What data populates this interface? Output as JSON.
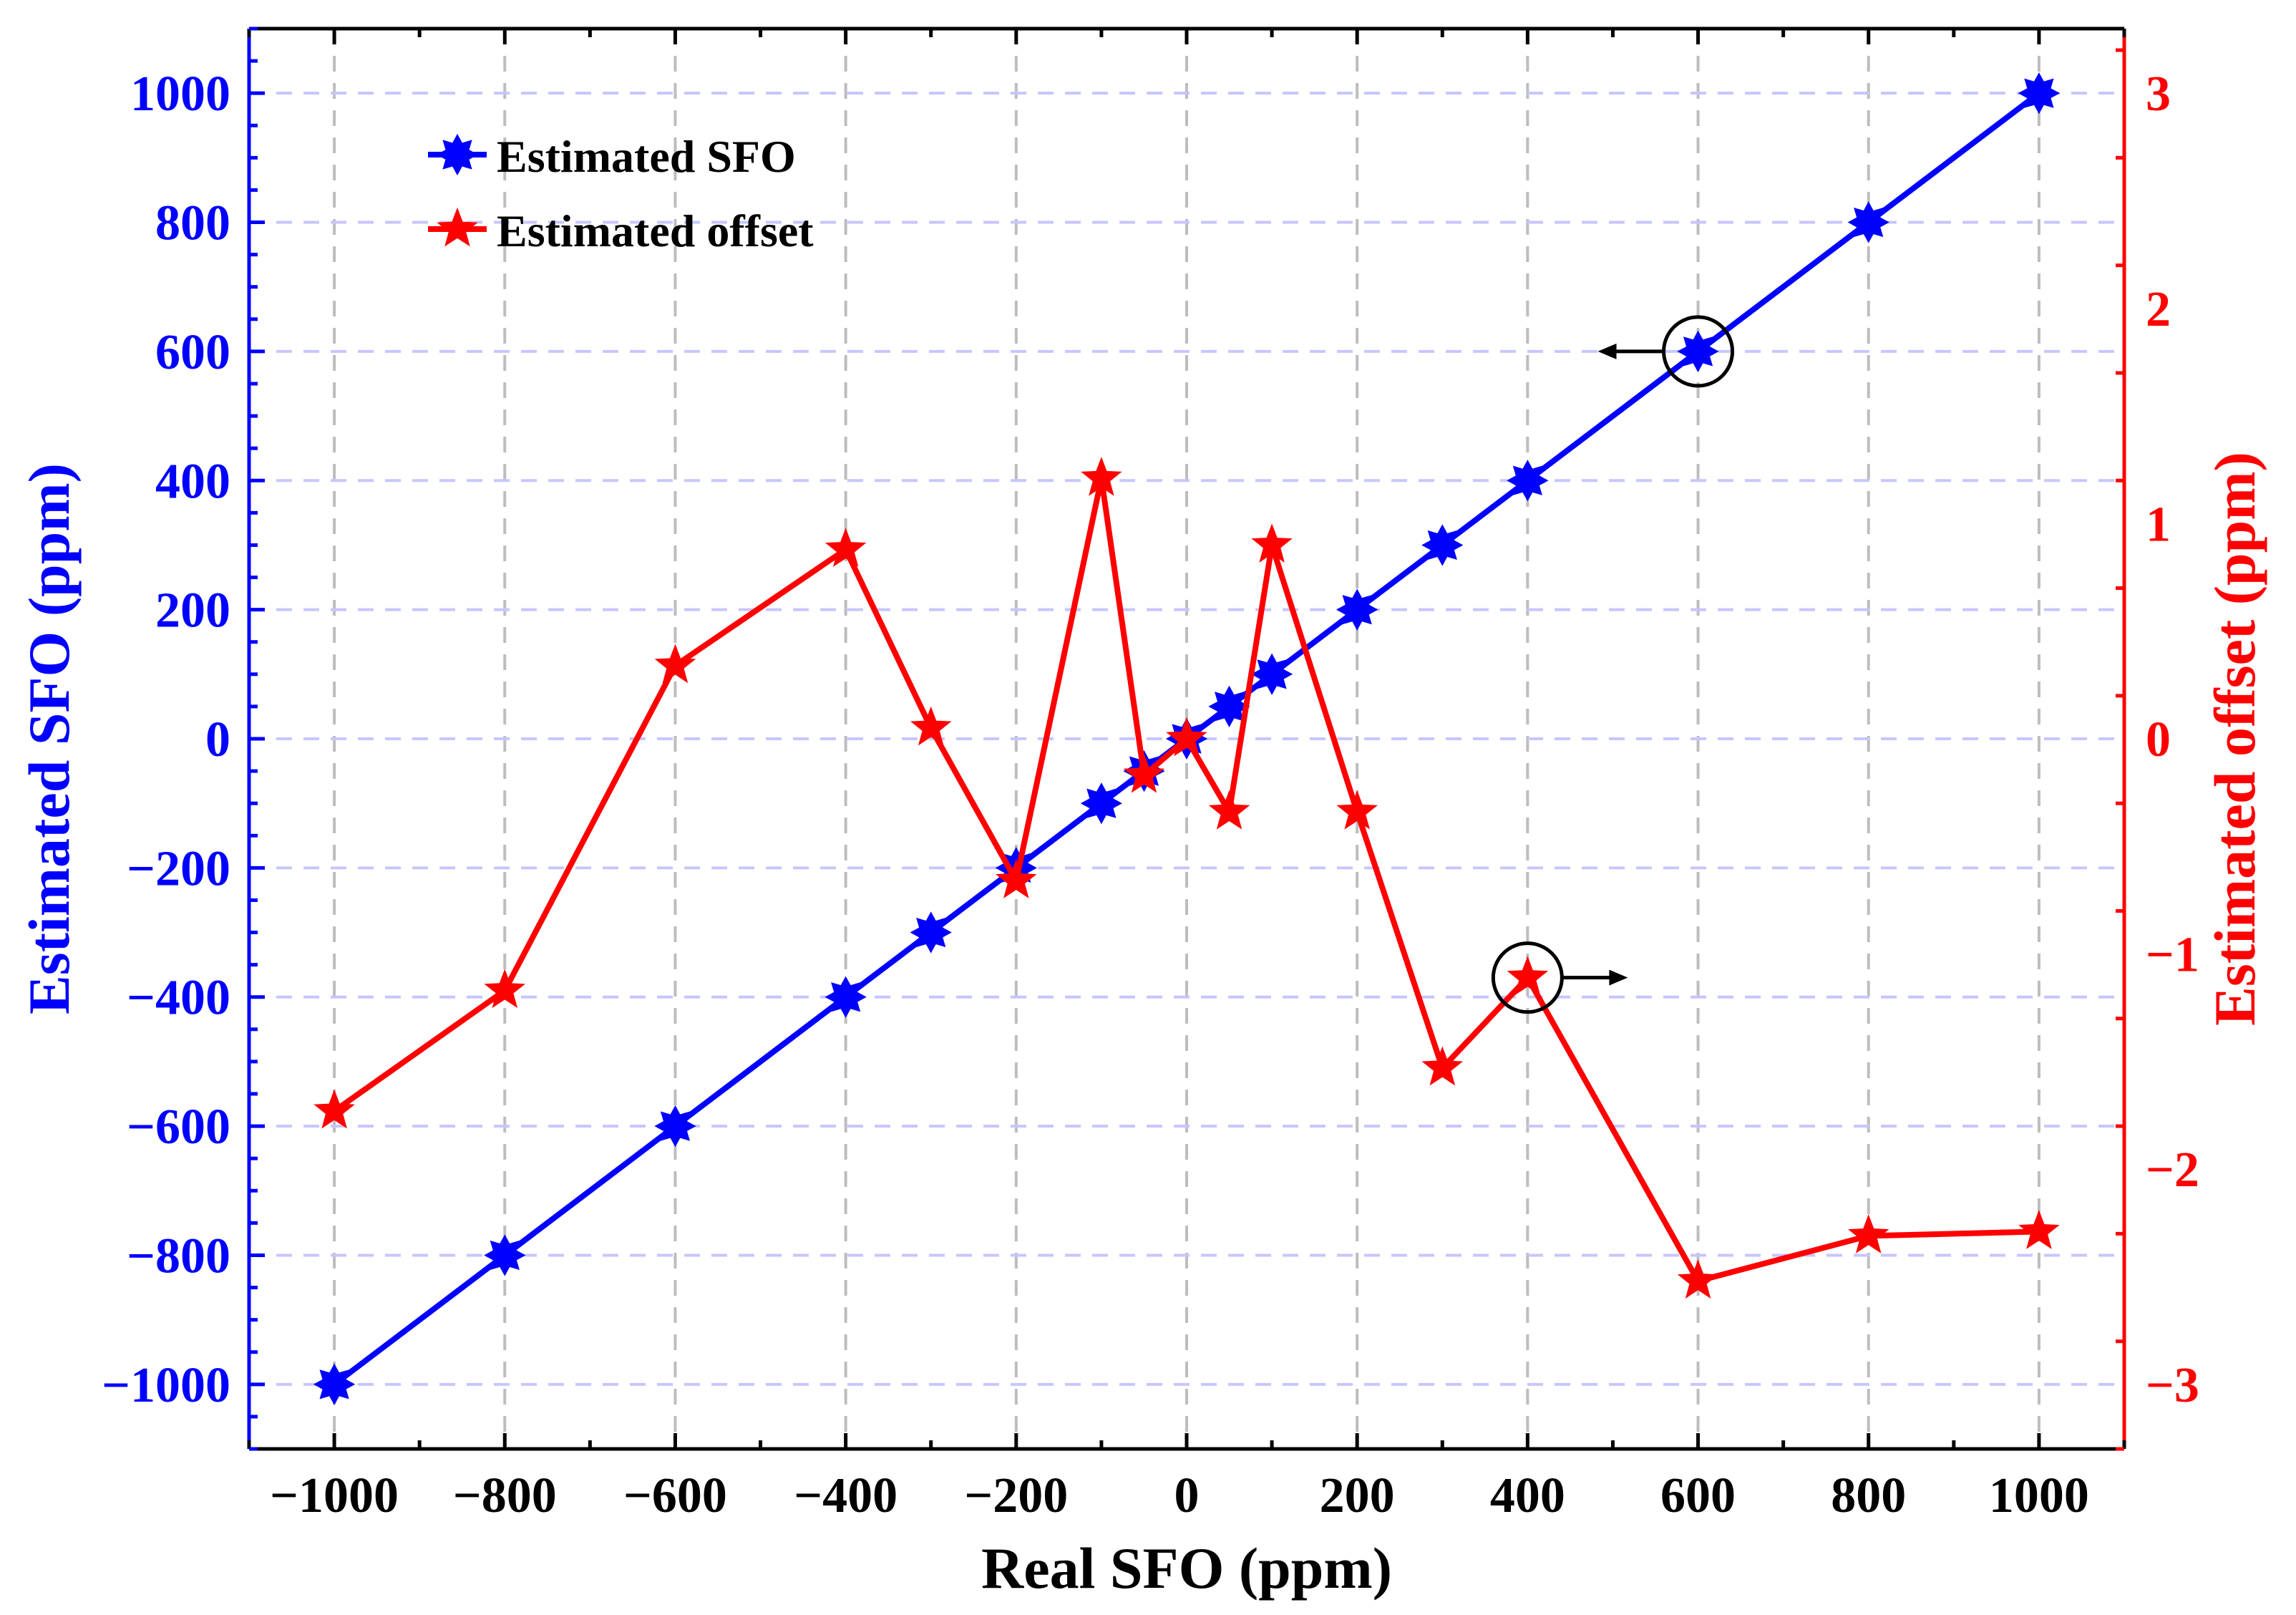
{
  "chart_data": {
    "type": "line",
    "xlabel": "Real SFO (ppm)",
    "ylabel_left": "Estimated SFO (ppm)",
    "ylabel_right": "Estimated offset (ppm)",
    "xlim": [
      -1100,
      1100
    ],
    "ylim_left": [
      -1100,
      1100
    ],
    "ylim_right": [
      -3.3,
      3.3
    ],
    "x_ticks": [
      -1000,
      -800,
      -600,
      -400,
      -200,
      0,
      200,
      400,
      600,
      800,
      1000
    ],
    "x_tick_labels": [
      "−1000",
      "−800",
      "−600",
      "−400",
      "−200",
      "0",
      "200",
      "400",
      "600",
      "800",
      "1000"
    ],
    "y_left_ticks": [
      -1000,
      -800,
      -600,
      -400,
      -200,
      0,
      200,
      400,
      600,
      800,
      1000
    ],
    "y_left_tick_labels": [
      "−1000",
      "−800",
      "−600",
      "−400",
      "−200",
      "0",
      "200",
      "400",
      "600",
      "800",
      "1000"
    ],
    "y_right_ticks": [
      -3,
      -2,
      -1,
      0,
      1,
      2,
      3
    ],
    "y_right_tick_labels": [
      "−3",
      "−2",
      "−1",
      "0",
      "1",
      "2",
      "3"
    ],
    "grid": true,
    "legend_position": "top-left",
    "series": [
      {
        "name": "Estimated SFO",
        "axis": "left",
        "color": "#0000ff",
        "marker": "star-8",
        "x": [
          -1000,
          -800,
          -600,
          -400,
          -300,
          -200,
          -100,
          -50,
          0,
          50,
          100,
          200,
          300,
          400,
          600,
          800,
          1000
        ],
        "values": [
          -1000,
          -800,
          -600,
          -400,
          -300,
          -200,
          -100,
          -50,
          0,
          50,
          100,
          200,
          300,
          400,
          600,
          800,
          1000
        ]
      },
      {
        "name": "Estimated offset",
        "axis": "right",
        "color": "#ff0000",
        "marker": "star-5",
        "x": [
          -1000,
          -800,
          -600,
          -400,
          -300,
          -200,
          -100,
          -50,
          0,
          50,
          100,
          200,
          300,
          400,
          600,
          800,
          1000
        ],
        "values": [
          -1.73,
          -1.17,
          0.34,
          0.88,
          0.05,
          -0.66,
          1.21,
          -0.17,
          0.0,
          -0.34,
          0.9,
          -0.34,
          -1.53,
          -1.11,
          -2.52,
          -2.31,
          -2.29
        ]
      }
    ],
    "annotations": [
      {
        "target": "Estimated SFO",
        "x": 600,
        "arrow": "left"
      },
      {
        "target": "Estimated offset",
        "x": 400,
        "arrow": "right"
      }
    ],
    "left_axis_color": "#0000ff",
    "right_axis_color": "#ff0000"
  }
}
